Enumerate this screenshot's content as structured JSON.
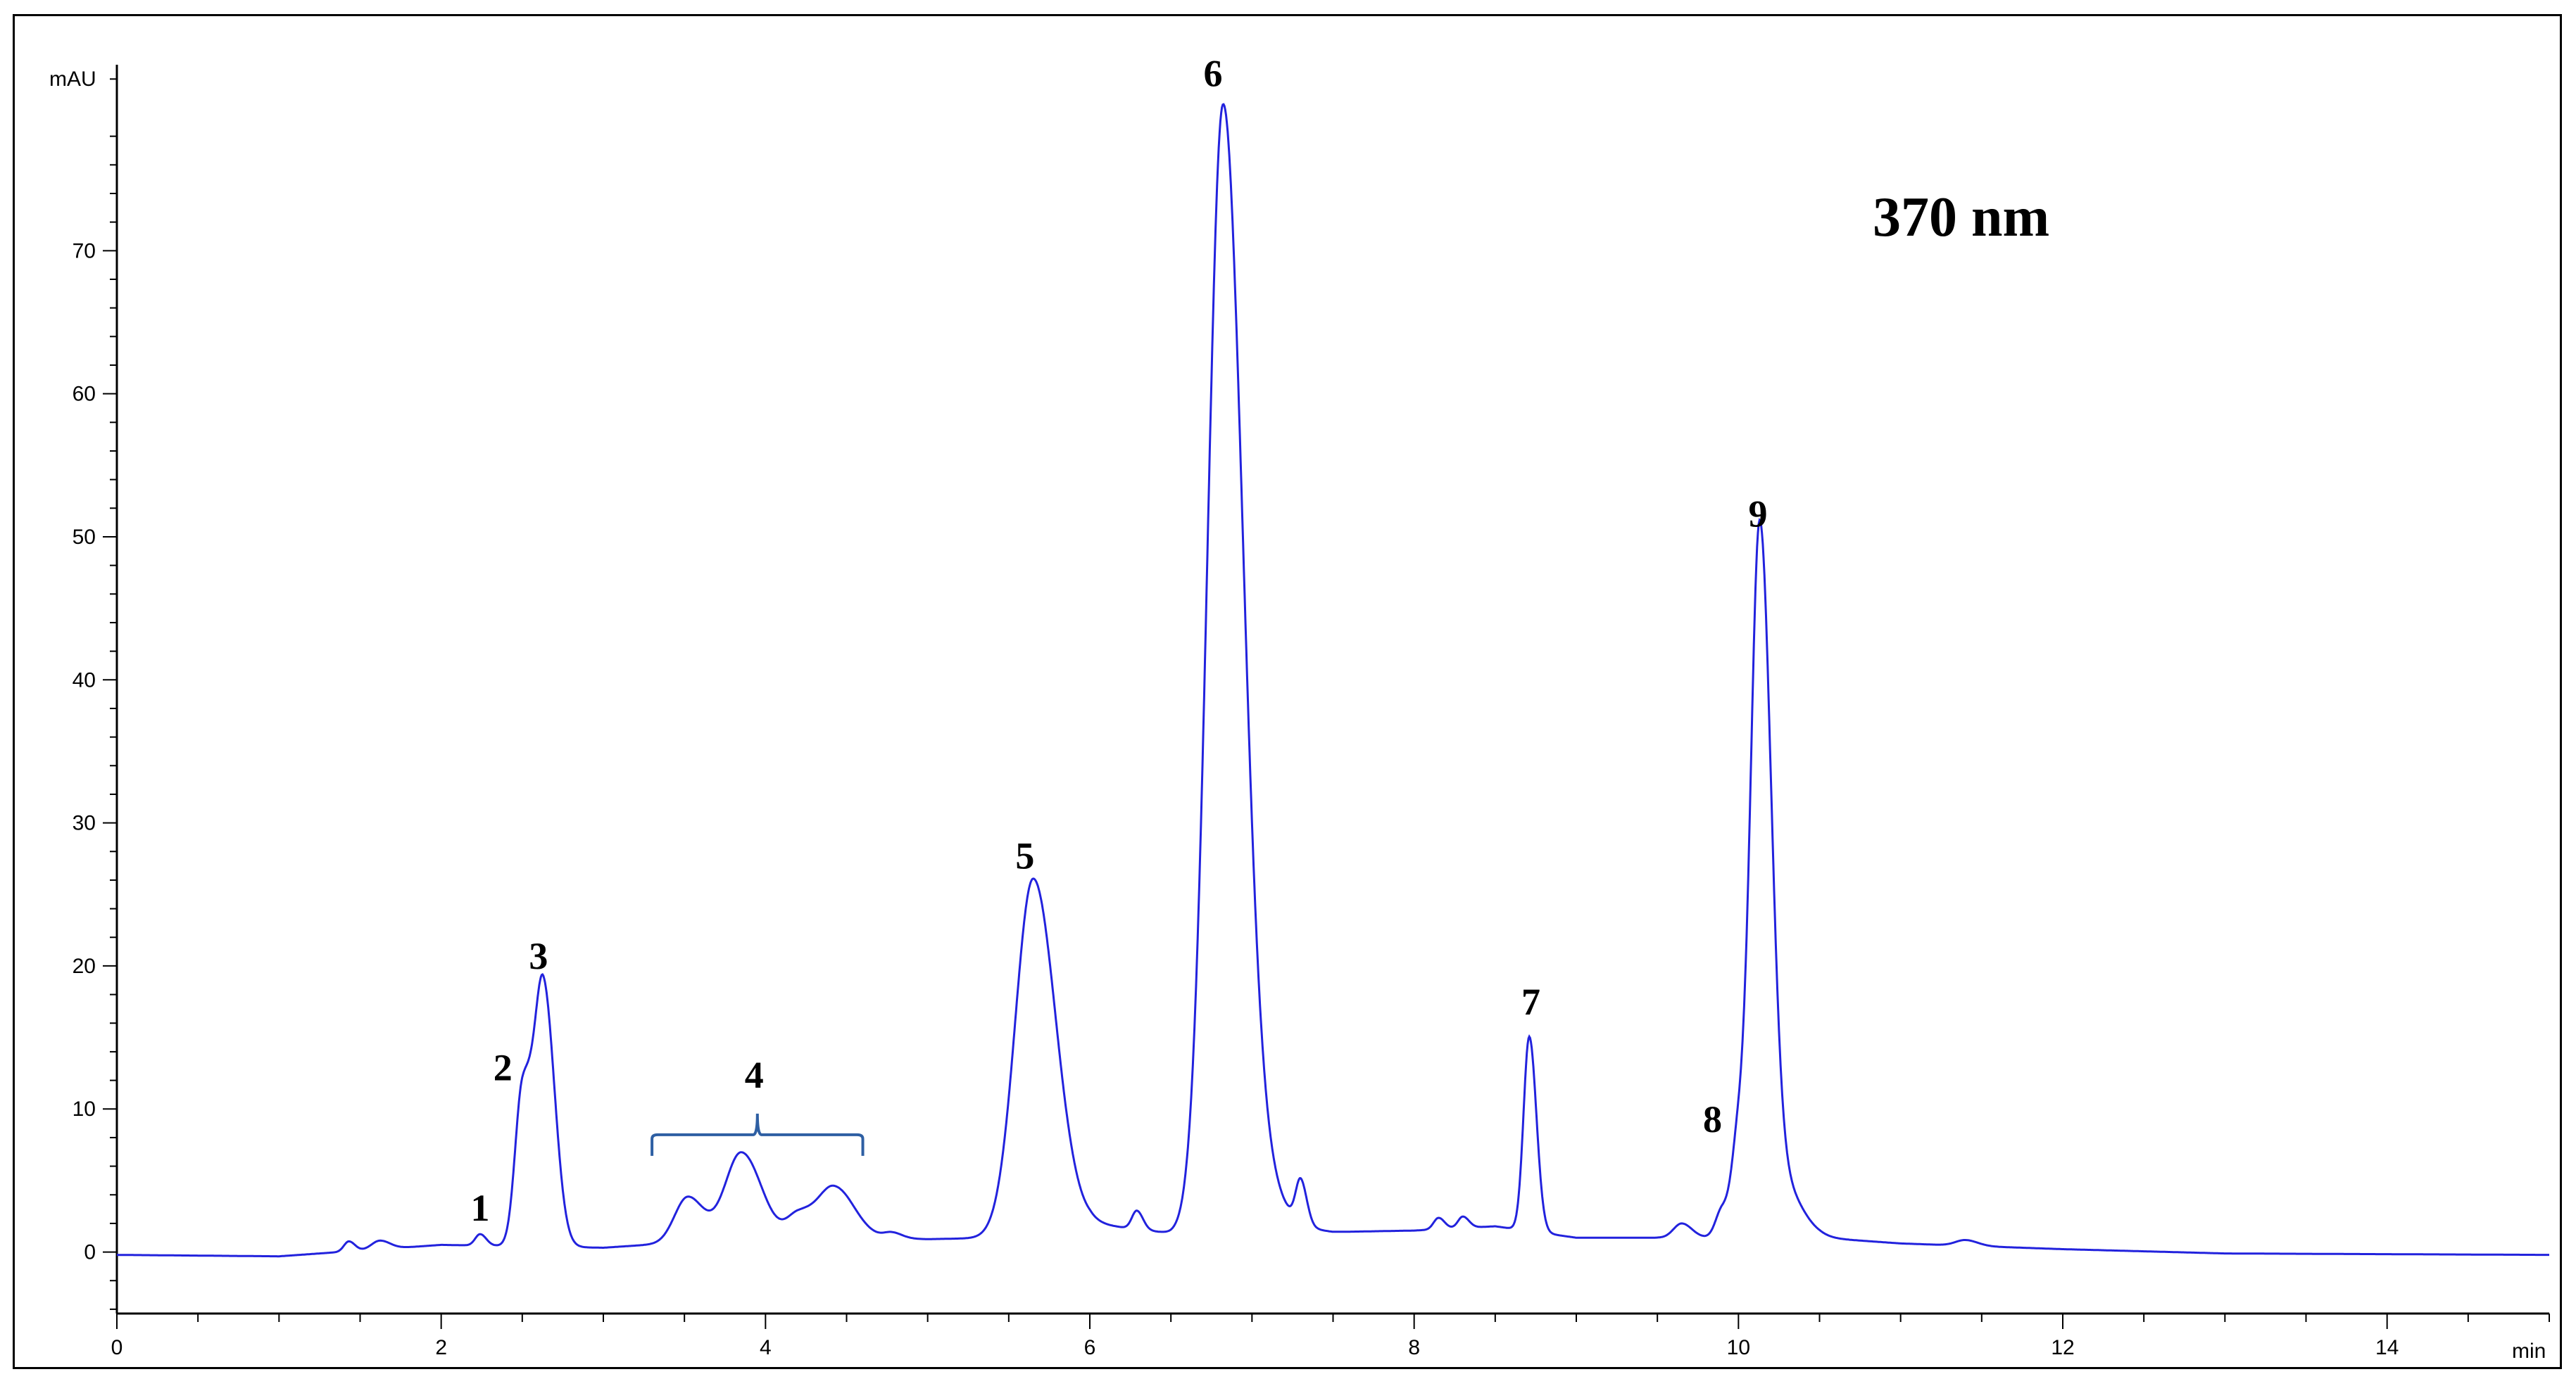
{
  "chart_data": {
    "type": "line",
    "title": "370 nm",
    "xlabel": "min",
    "ylabel": "mAU",
    "xlim": [
      0,
      15
    ],
    "ylim": [
      -4.3,
      83
    ],
    "x_ticks": [
      0,
      2,
      4,
      6,
      8,
      10,
      12,
      14
    ],
    "y_ticks": [
      0,
      10,
      20,
      30,
      40,
      50,
      60,
      70
    ],
    "grid": false,
    "line_color": "#2222dd",
    "baseline": [
      [
        0,
        -0.2
      ],
      [
        1.0,
        -0.3
      ],
      [
        2.0,
        0.5
      ],
      [
        3.0,
        0.3
      ],
      [
        3.4,
        0.6
      ],
      [
        4.5,
        1.0
      ],
      [
        5.0,
        0.9
      ],
      [
        5.5,
        1.0
      ],
      [
        6.0,
        2.0
      ],
      [
        6.5,
        1.3
      ],
      [
        7.3,
        1.6
      ],
      [
        7.5,
        1.4
      ],
      [
        8.0,
        1.5
      ],
      [
        8.5,
        1.8
      ],
      [
        9.0,
        1.0
      ],
      [
        9.5,
        1.0
      ],
      [
        10.5,
        1.0
      ],
      [
        11.0,
        0.6
      ],
      [
        12.0,
        0.2
      ],
      [
        13.0,
        -0.1
      ],
      [
        15.0,
        -0.2
      ]
    ],
    "peaks": [
      {
        "x": 1.43,
        "h": 0.7,
        "w": 0.03
      },
      {
        "x": 1.62,
        "h": 0.6,
        "w": 0.05
      },
      {
        "x": 2.24,
        "h": 0.8,
        "w": 0.03
      },
      {
        "x": 2.5,
        "h": 10.7,
        "w": 0.045
      },
      {
        "x": 2.63,
        "h": 18.2,
        "w": 0.055
      },
      {
        "x": 3.52,
        "h": 3.2,
        "w": 0.08
      },
      {
        "x": 3.85,
        "h": 6.2,
        "w": 0.1
      },
      {
        "x": 4.2,
        "h": 1.6,
        "w": 0.07
      },
      {
        "x": 4.42,
        "h": 3.6,
        "w": 0.1
      },
      {
        "x": 4.78,
        "h": 0.4,
        "w": 0.05
      },
      {
        "x": 5.65,
        "h": 24.8,
        "w": 0.11
      },
      {
        "x": 6.29,
        "h": 1.3,
        "w": 0.03
      },
      {
        "x": 6.82,
        "h": 77.5,
        "w": 0.095
      },
      {
        "x": 7.0,
        "h": 4.0,
        "w": 0.12
      },
      {
        "x": 7.3,
        "h": 3.0,
        "w": 0.03
      },
      {
        "x": 8.15,
        "h": 0.8,
        "w": 0.03
      },
      {
        "x": 8.3,
        "h": 0.8,
        "w": 0.03
      },
      {
        "x": 8.71,
        "h": 13.6,
        "w": 0.035
      },
      {
        "x": 9.65,
        "h": 1.0,
        "w": 0.05
      },
      {
        "x": 9.9,
        "h": 2.0,
        "w": 0.04
      },
      {
        "x": 10.0,
        "h": 6.3,
        "w": 0.04
      },
      {
        "x": 10.13,
        "h": 48.0,
        "w": 0.055
      },
      {
        "x": 10.25,
        "h": 4.0,
        "w": 0.1
      },
      {
        "x": 11.4,
        "h": 0.4,
        "w": 0.06
      }
    ],
    "annotations": [
      {
        "label": "1",
        "x": 2.24,
        "y": 2.2
      },
      {
        "label": "2",
        "x": 2.38,
        "y": 12.0
      },
      {
        "label": "3",
        "x": 2.6,
        "y": 19.8
      },
      {
        "label": "4",
        "x": 3.93,
        "y": 11.5
      },
      {
        "label": "5",
        "x": 5.6,
        "y": 26.8
      },
      {
        "label": "6",
        "x": 6.76,
        "y": 81.5
      },
      {
        "label": "7",
        "x": 8.72,
        "y": 16.6
      },
      {
        "label": "8",
        "x": 9.84,
        "y": 8.4
      },
      {
        "label": "9",
        "x": 10.12,
        "y": 50.7
      }
    ],
    "bracket": {
      "label": "4",
      "x_start": 3.3,
      "x_end": 4.6,
      "y": 8.2,
      "color": "#2e5fa3"
    }
  }
}
